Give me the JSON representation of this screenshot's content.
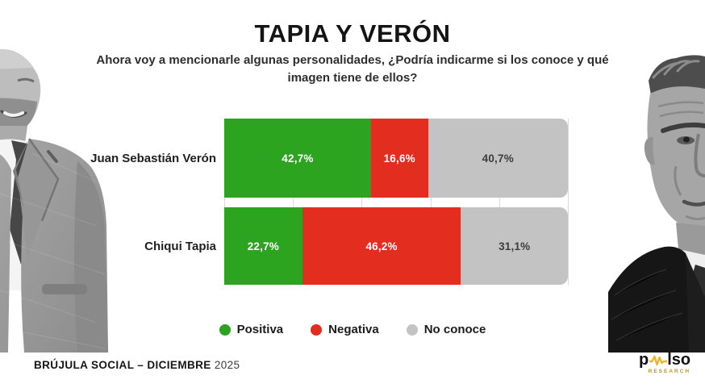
{
  "header": {
    "title": "TAPIA Y VERÓN",
    "subtitle_line1": "Ahora voy a mencionarle algunas personalidades, ¿Podría indicarme si los conoce y qué",
    "subtitle_line2": "imagen tiene de ellos?"
  },
  "chart_data": {
    "type": "bar",
    "orientation": "horizontal",
    "stacked": true,
    "unit": "%",
    "xlim": [
      0,
      100
    ],
    "grid": true,
    "gridlines_percent": [
      0,
      20,
      40,
      60,
      80,
      100
    ],
    "legend_position": "bottom",
    "categories": [
      "Juan Sebastián Verón",
      "Chiqui Tapia"
    ],
    "series": [
      {
        "name": "Positiva",
        "color": "#2ca41f",
        "text_color": "#ffffff",
        "values": [
          42.7,
          22.7
        ]
      },
      {
        "name": "Negativa",
        "color": "#e32d1e",
        "text_color": "#ffffff",
        "values": [
          16.6,
          46.2
        ]
      },
      {
        "name": "No conoce",
        "color": "#c3c3c3",
        "text_color": "#3d3d3d",
        "values": [
          40.7,
          31.1
        ]
      }
    ],
    "value_labels": [
      [
        "42,7%",
        "16,6%",
        "40,7%"
      ],
      [
        "22,7%",
        "46,2%",
        "31,1%"
      ]
    ]
  },
  "footer": {
    "left_bold": "BRÚJULA SOCIAL – DICIEMBRE",
    "left_year": "2025",
    "logo_part1": "p",
    "logo_part2": "lso",
    "logo_subtext": "RESEARCH"
  },
  "colors": {
    "positive_green": "#2ca41f",
    "negative_red": "#e32d1e",
    "unknown_gray": "#c3c3c3",
    "logo_gold": "#f2b32b",
    "gridline_gray": "#d9d9d9"
  }
}
